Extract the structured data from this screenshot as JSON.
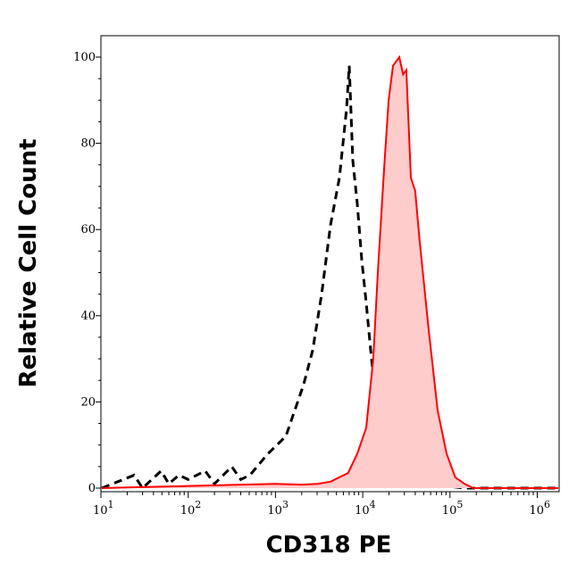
{
  "chart_data": {
    "type": "area",
    "title": "",
    "xlabel": "CD318 PE",
    "ylabel": "Relative Cell Count",
    "xscale": "log",
    "xlim": [
      10,
      1800000
    ],
    "ylim": [
      0,
      105
    ],
    "x_ticks": [
      {
        "base": "10",
        "exp": "1",
        "value": 10
      },
      {
        "base": "10",
        "exp": "2",
        "value": 100
      },
      {
        "base": "10",
        "exp": "3",
        "value": 1000
      },
      {
        "base": "10",
        "exp": "4",
        "value": 10000
      },
      {
        "base": "10",
        "exp": "5",
        "value": 100000
      },
      {
        "base": "10",
        "exp": "6",
        "value": 1000000
      }
    ],
    "y_ticks": [
      "0",
      "20",
      "40",
      "60",
      "80",
      "100"
    ],
    "grid": false,
    "series": [
      {
        "style": "dashed",
        "color": "#000000",
        "x": [
          10,
          24,
          30,
          49,
          60,
          78,
          100,
          157,
          200,
          316,
          400,
          510,
          820,
          1315,
          2100,
          2670,
          3380,
          4270,
          5410,
          6530,
          7000,
          7690,
          8660,
          9750,
          10970,
          12340,
          13870,
          17570,
          22230,
          28130,
          35650,
          45080,
          72270,
          91400,
          146600,
          1000000,
          1800000
        ],
        "y": [
          0,
          3,
          0,
          4,
          1,
          3,
          2,
          4,
          1,
          5,
          2,
          3,
          8,
          12,
          24,
          32,
          45,
          61,
          72,
          88,
          98,
          76,
          66,
          53,
          43,
          32,
          22,
          14,
          10,
          8,
          5,
          2.5,
          6,
          0.5,
          0,
          0,
          0
        ]
      },
      {
        "style": "filled",
        "color": "#ff0000",
        "fill": "#ffcccc",
        "x": [
          10,
          100,
          1000,
          2000,
          3000,
          4270,
          6800,
          8660,
          10970,
          13200,
          14900,
          17570,
          19800,
          22230,
          26240,
          29000,
          31600,
          35650,
          39900,
          45080,
          56800,
          72270,
          91400,
          115000,
          146600,
          184000,
          1800000
        ],
        "y": [
          0,
          0.5,
          1,
          0.8,
          1,
          1.5,
          3.5,
          8,
          14,
          30,
          50,
          74,
          90,
          98,
          100,
          96,
          97,
          72,
          69,
          57,
          37,
          18,
          8,
          2.5,
          1,
          0,
          0
        ]
      }
    ]
  }
}
